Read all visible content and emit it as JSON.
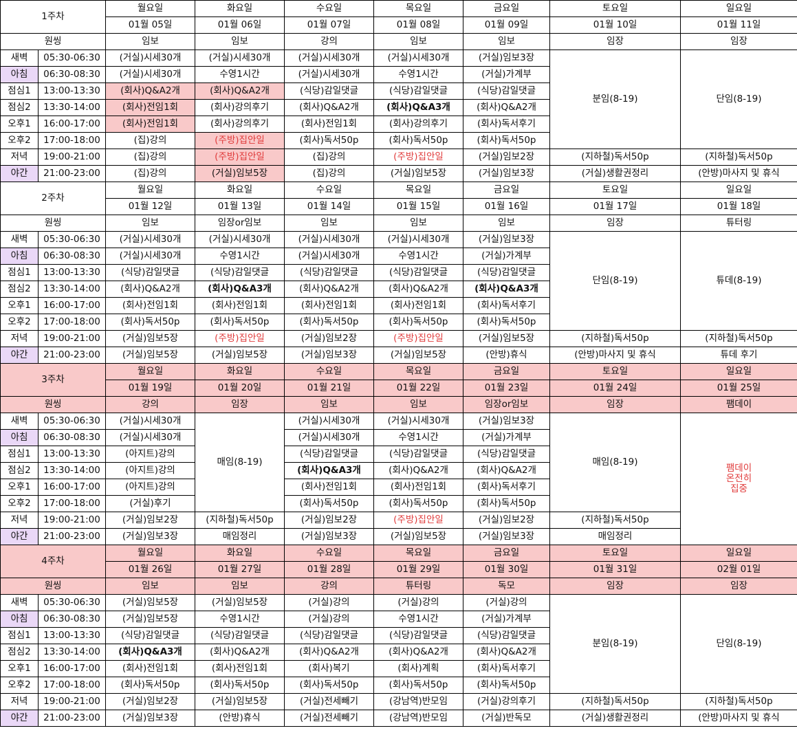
{
  "title": "",
  "cols": [
    "1",
    "2",
    "3",
    "4"
  ],
  "weeks": [
    {
      "label": "1주차",
      "days": [
        "월요일",
        "화요일",
        "수요일",
        "목요일",
        "금요일",
        "토요일",
        "일요일"
      ],
      "dates": [
        "01월 05일",
        "01월 06일",
        "01월 07일",
        "01월 08일",
        "01월 09일",
        "01월 10일",
        "01월 11일"
      ],
      "warmup_label": "원씽",
      "warmup": [
        "임보",
        "임보",
        "강의",
        "임보",
        "임보",
        "임장",
        "임장"
      ],
      "slots": [
        {
          "name": "새벽",
          "time": "05:30-06:30"
        },
        {
          "name": "아침",
          "time": "06:30-08:30"
        },
        {
          "name": "점심1",
          "time": "13:00-13:30"
        },
        {
          "name": "점심2",
          "time": "13:30-14:00"
        },
        {
          "name": "오후1",
          "time": "16:00-17:00"
        },
        {
          "name": "오후2",
          "time": "17:00-18:00"
        },
        {
          "name": "저녁",
          "time": "19:00-21:00"
        },
        {
          "name": "야간",
          "time": "21:00-23:00"
        }
      ],
      "tasks": [
        [
          "(거실)시세30개",
          "(거실)시세30개",
          "(거실)시세30개",
          "(거실)시세30개",
          "(거실)임보3장"
        ],
        [
          "(거실)시세30개",
          "수영1시간",
          "(거실)시세30개",
          "수영1시간",
          "(거실)가계부"
        ],
        [
          "(회사)Q&A2개",
          "(회사)Q&A2개",
          "(식당)감일댓글",
          "(식당)감일댓글",
          "(식당)감일댓글"
        ],
        [
          "(회사)전임1회",
          "(회사)강의후기",
          "(회사)Q&A2개",
          "(회사)Q&A3개",
          "(회사)Q&A2개"
        ],
        [
          "(회사)전임1회",
          "(회사)강의후기",
          "(회사)전임1회",
          "(회사)강의후기",
          "(회사)독서후기"
        ],
        [
          "(집)강의",
          "(주방)집안일",
          "(회사)독서50p",
          "(회사)독서50p",
          "(회사)독서50p"
        ],
        [
          "(집)강의",
          "(주방)집안일",
          "(집)강의",
          "(주방)집안일",
          "(거실)임보2장"
        ],
        [
          "(집)강의",
          "(거실)임보5장",
          "(집)강의",
          "(거실)임보5장",
          "(거실)임보3장"
        ]
      ],
      "sat_block": "분임(8-19)",
      "sun_block": "단임(8-19)",
      "sat_evening": "(지하철)독서50p",
      "sun_evening": "(지하철)독서50p",
      "sat_night": "(거실)생활권정리",
      "sun_night": "(안방)마사지 및 휴식"
    },
    {
      "label": "2주차",
      "days": [
        "월요일",
        "화요일",
        "수요일",
        "목요일",
        "금요일",
        "토요일",
        "일요일"
      ],
      "dates": [
        "01월 12일",
        "01월 13일",
        "01월 14일",
        "01월 15일",
        "01월 16일",
        "01월 17일",
        "01월 18일"
      ],
      "warmup_label": "원씽",
      "warmup": [
        "임보",
        "임장or임보",
        "임보",
        "임보",
        "임보",
        "임장",
        "튜터링"
      ],
      "slots": [
        {
          "name": "새벽",
          "time": "05:30-06:30"
        },
        {
          "name": "아침",
          "time": "06:30-08:30"
        },
        {
          "name": "점심1",
          "time": "13:00-13:30"
        },
        {
          "name": "점심2",
          "time": "13:30-14:00"
        },
        {
          "name": "오후1",
          "time": "16:00-17:00"
        },
        {
          "name": "오후2",
          "time": "17:00-18:00"
        },
        {
          "name": "저녁",
          "time": "19:00-21:00"
        },
        {
          "name": "야간",
          "time": "21:00-23:00"
        }
      ],
      "tasks": [
        [
          "(거실)시세30개",
          "(거실)시세30개",
          "(거실)시세30개",
          "(거실)시세30개",
          "(거실)임보3장"
        ],
        [
          "(거실)시세30개",
          "수영1시간",
          "(거실)시세30개",
          "수영1시간",
          "(거실)가계부"
        ],
        [
          "(식당)감일댓글",
          "(식당)감일댓글",
          "(식당)감일댓글",
          "(식당)감일댓글",
          "(식당)감일댓글"
        ],
        [
          "(회사)Q&A2개",
          "(회사)Q&A3개",
          "(회사)Q&A2개",
          "(회사)Q&A2개",
          "(회사)Q&A3개"
        ],
        [
          "(회사)전임1회",
          "(회사)전임1회",
          "(회사)전임1회",
          "(회사)전임1회",
          "(회사)독서후기"
        ],
        [
          "(회사)독서50p",
          "(회사)독서50p",
          "(회사)독서50p",
          "(회사)독서50p",
          "(회사)독서50p"
        ],
        [
          "(거실)임보5장",
          "(주방)집안일",
          "(거실)임보2장",
          "(주방)집안일",
          "(거실)임보5장"
        ],
        [
          "(거실)임보5장",
          "(거실)임보5장",
          "(거실)임보3장",
          "(거실)임보5장",
          "(안방)휴식"
        ]
      ],
      "sat_block": "단임(8-19)",
      "sun_block": "튜데(8-19)",
      "sat_evening": "(지하철)독서50p",
      "sun_evening": "(지하철)독서50p",
      "sat_night": "(안방)마사지 및 휴식",
      "sun_night": "튜데 후기"
    },
    {
      "label": "3주차",
      "days": [
        "월요일",
        "화요일",
        "수요일",
        "목요일",
        "금요일",
        "토요일",
        "일요일"
      ],
      "dates": [
        "01월 19일",
        "01월 20일",
        "01월 21일",
        "01월 22일",
        "01월 23일",
        "01월 24일",
        "01월 25일"
      ],
      "warmup_label": "원씽",
      "warmup": [
        "강의",
        "임장",
        "임보",
        "임보",
        "임장or임보",
        "임장",
        "팸데이"
      ],
      "slots": [
        {
          "name": "새벽",
          "time": "05:30-06:30"
        },
        {
          "name": "아침",
          "time": "06:30-08:30"
        },
        {
          "name": "점심1",
          "time": "13:00-13:30"
        },
        {
          "name": "점심2",
          "time": "13:30-14:00"
        },
        {
          "name": "오후1",
          "time": "16:00-17:00"
        },
        {
          "name": "오후2",
          "time": "17:00-18:00"
        },
        {
          "name": "저녁",
          "time": "19:00-21:00"
        },
        {
          "name": "야간",
          "time": "21:00-23:00"
        }
      ],
      "mon": [
        "(거실)시세30개",
        "(거실)시세30개",
        "(아지트)강의",
        "(아지트)강의",
        "(아지트)강의",
        "(거실)후기",
        "(거실)임보2장",
        "(거실)임보3장"
      ],
      "tue_block": "매임(8-19)",
      "tue_evening": "(지하철)독서50p",
      "tue_night": "매임정리",
      "rest": [
        [
          "(거실)시세30개",
          "(거실)시세30개",
          "(거실)임보3장"
        ],
        [
          "(거실)시세30개",
          "수영1시간",
          "(거실)가계부"
        ],
        [
          "(식당)감일댓글",
          "(식당)감일댓글",
          "(식당)감일댓글"
        ],
        [
          "(회사)Q&A3개",
          "(회사)Q&A2개",
          "(회사)Q&A2개"
        ],
        [
          "(회사)전임1회",
          "(회사)전임1회",
          "(회사)독서후기"
        ],
        [
          "(회사)독서50p",
          "(회사)독서50p",
          "(회사)독서50p"
        ],
        [
          "(거실)임보2장",
          "(주방)집안일",
          "(거실)임보2장"
        ],
        [
          "(거실)임보3장",
          "(거실)임보5장",
          "(거실)임보3장"
        ]
      ],
      "sat_block": "매임(8-19)",
      "sat_evening": "(지하철)독서50p",
      "sat_night": "매임정리",
      "sun_focus": [
        "팸데이",
        "온전히",
        "집중"
      ]
    },
    {
      "label": "4주차",
      "days": [
        "월요일",
        "화요일",
        "수요일",
        "목요일",
        "금요일",
        "토요일",
        "일요일"
      ],
      "dates": [
        "01월 26일",
        "01월 27일",
        "01월 28일",
        "01월 29일",
        "01월 30일",
        "01월 31일",
        "02월 01일"
      ],
      "warmup_label": "원씽",
      "warmup": [
        "임보",
        "임보",
        "강의",
        "튜터링",
        "독모",
        "임장",
        "임장"
      ],
      "slots": [
        {
          "name": "새벽",
          "time": "05:30-06:30"
        },
        {
          "name": "아침",
          "time": "06:30-08:30"
        },
        {
          "name": "점심1",
          "time": "13:00-13:30"
        },
        {
          "name": "점심2",
          "time": "13:30-14:00"
        },
        {
          "name": "오후1",
          "time": "16:00-17:00"
        },
        {
          "name": "오후2",
          "time": "17:00-18:00"
        },
        {
          "name": "저녁",
          "time": "19:00-21:00"
        },
        {
          "name": "야간",
          "time": "21:00-23:00"
        }
      ],
      "tasks": [
        [
          "(거실)임보5장",
          "(거실)임보5장",
          "(거실)강의",
          "(거실)강의",
          "(거실)강의"
        ],
        [
          "(거실)임보5장",
          "수영1시간",
          "(거실)강의",
          "수영1시간",
          "(거실)가계부"
        ],
        [
          "(식당)감일댓글",
          "(식당)감일댓글",
          "(식당)감일댓글",
          "(식당)감일댓글",
          "(식당)감일댓글"
        ],
        [
          "(회사)Q&A3개",
          "(회사)Q&A2개",
          "(회사)Q&A2개",
          "(회사)Q&A2개",
          "(회사)Q&A2개"
        ],
        [
          "(회사)전임1회",
          "(회사)전임1회",
          "(회사)복기",
          "(회사)계획",
          "(회사)독서후기"
        ],
        [
          "(회사)독서50p",
          "(회사)독서50p",
          "(회사)독서50p",
          "(회사)독서50p",
          "(회사)독서50p"
        ],
        [
          "(거실)임보2장",
          "(거실)임보5장",
          "(거실)전세빼기",
          "(강남역)반모임",
          "(거실)강의후기"
        ],
        [
          "(거실)임보3장",
          "(안방)휴식",
          "(거실)전세빼기",
          "(강남역)반모임",
          "(거실)반독모"
        ]
      ],
      "sat_block": "분임(8-19)",
      "sun_block": "단임(8-19)",
      "sat_evening": "(지하철)독서50p",
      "sun_evening": "(지하철)독서50p",
      "sat_night": "(거실)생활권정리",
      "sun_night": "(안방)마사지 및 휴식"
    }
  ],
  "highlight": {
    "pink": "#f9c9c9",
    "lavender": "#ead8f7",
    "red_text": "#e03a3a"
  }
}
